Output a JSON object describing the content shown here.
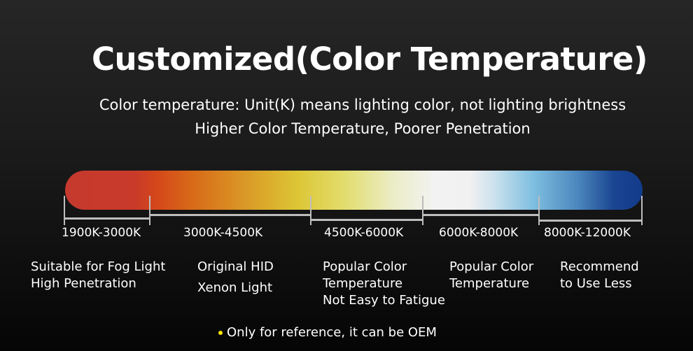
{
  "title": "Customized(Color Temperature)",
  "subtitle_lines": [
    "Color temperature: Unit(K) means lighting color, not lighting brightness",
    "Higher Color Temperature, Poorer Penetration"
  ],
  "colors": {
    "red": "#c5392e",
    "orange": "#d4481a",
    "yellow": "#dcc534",
    "white": "#f2f2f2",
    "light_blue": "#7fbfe0",
    "dark_blue": "#123b8a",
    "note_dot": "#ffe600"
  },
  "ranges": [
    {
      "label": "1900K-3000K",
      "desc": [
        "Suitable for Fog Light",
        "High Penetration"
      ]
    },
    {
      "label": "3000K-4500K",
      "desc": [
        "Original HID",
        "Xenon Light"
      ]
    },
    {
      "label": "4500K-6000K",
      "desc": [
        "Popular Color",
        "Temperature",
        "Not Easy to Fatigue"
      ]
    },
    {
      "label": "6000K-8000K",
      "desc": [
        "Popular Color",
        "Temperature"
      ]
    },
    {
      "label": "8000K-12000K",
      "desc": [
        "Recommend",
        "to Use Less"
      ]
    }
  ],
  "note": "Only for reference, it can be OEM"
}
